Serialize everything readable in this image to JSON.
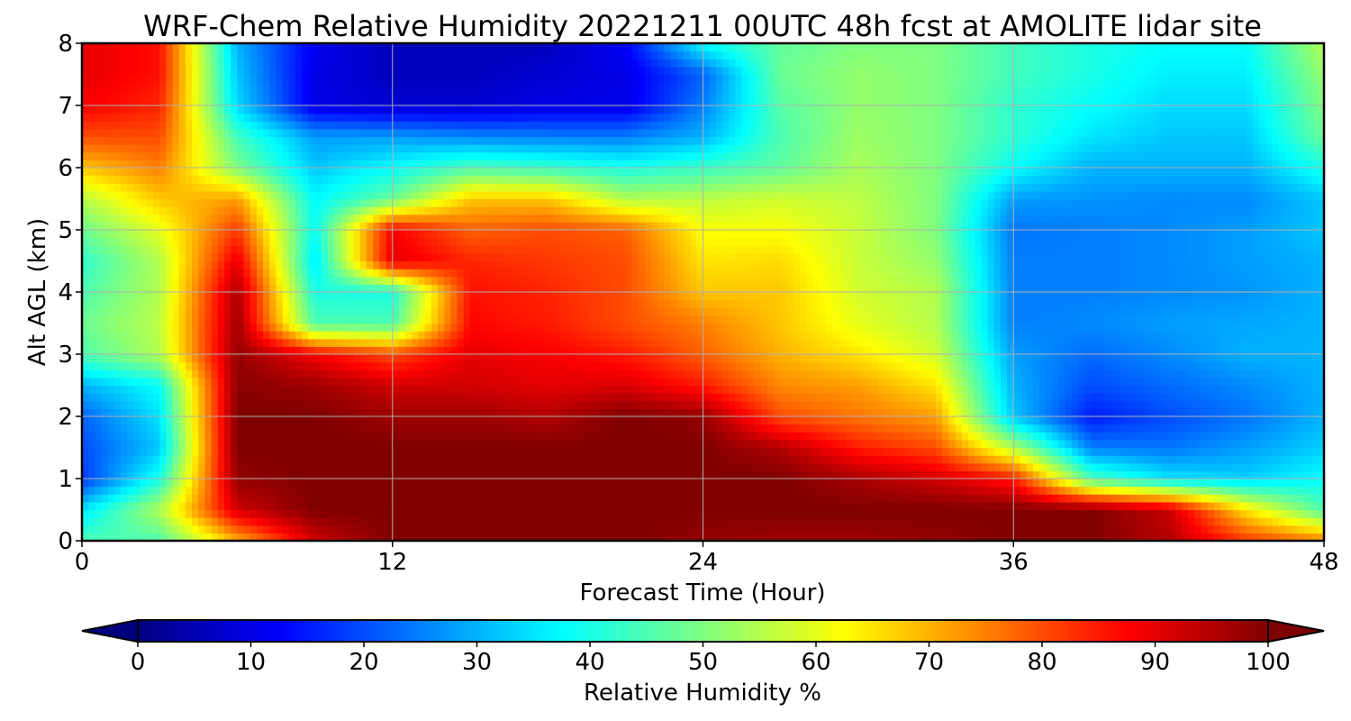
{
  "chart_data": {
    "type": "heatmap",
    "title": "WRF-Chem Relative Humidity 20221211 00UTC 48h fcst at AMOLITE lidar site",
    "xlabel": "Forecast Time (Hour)",
    "ylabel": "Alt AGL (km)",
    "xlim": [
      0,
      48
    ],
    "ylim": [
      0,
      8
    ],
    "x_ticks": [
      "0",
      "12",
      "24",
      "36",
      "48"
    ],
    "y_ticks": [
      "0",
      "1",
      "2",
      "3",
      "4",
      "5",
      "6",
      "7",
      "8"
    ],
    "grid": true,
    "colormap": "jet",
    "colorbar": {
      "label": "Relative Humidity %",
      "orientation": "horizontal",
      "location": "bottom",
      "range": [
        0,
        100
      ],
      "extend": "both",
      "ticks": [
        "0",
        "10",
        "20",
        "30",
        "40",
        "50",
        "60",
        "70",
        "80",
        "90",
        "100"
      ]
    },
    "x": [
      0,
      3,
      6,
      9,
      12,
      15,
      18,
      21,
      24,
      27,
      30,
      33,
      36,
      39,
      42,
      45,
      48
    ],
    "y": [
      0,
      0.5,
      1,
      1.5,
      2,
      2.5,
      3,
      3.5,
      4,
      4.5,
      5,
      5.5,
      6,
      6.5,
      7,
      7.5,
      8
    ],
    "z": [
      [
        45,
        45,
        70,
        92,
        100,
        100,
        100,
        100,
        98,
        97,
        97,
        98,
        100,
        100,
        95,
        82,
        75
      ],
      [
        35,
        55,
        92,
        100,
        100,
        100,
        100,
        100,
        100,
        100,
        100,
        100,
        100,
        100,
        93,
        65,
        45
      ],
      [
        18,
        40,
        98,
        100,
        100,
        100,
        100,
        100,
        100,
        100,
        96,
        92,
        85,
        45,
        35,
        33,
        38
      ],
      [
        20,
        32,
        100,
        100,
        100,
        100,
        100,
        100,
        100,
        95,
        85,
        80,
        55,
        25,
        24,
        28,
        33
      ],
      [
        22,
        35,
        100,
        100,
        97,
        97,
        95,
        100,
        98,
        80,
        76,
        72,
        32,
        15,
        20,
        24,
        30
      ],
      [
        30,
        38,
        99,
        97,
        92,
        92,
        90,
        91,
        85,
        74,
        72,
        65,
        30,
        20,
        23,
        26,
        30
      ],
      [
        45,
        55,
        98,
        88,
        80,
        90,
        88,
        85,
        78,
        70,
        65,
        58,
        28,
        23,
        26,
        30,
        30
      ],
      [
        48,
        56,
        97,
        45,
        45,
        87,
        85,
        80,
        75,
        68,
        60,
        55,
        25,
        26,
        28,
        29,
        30
      ],
      [
        45,
        55,
        96,
        40,
        40,
        86,
        84,
        80,
        68,
        68,
        58,
        55,
        25,
        25,
        26,
        27,
        30
      ],
      [
        42,
        55,
        90,
        35,
        90,
        84,
        82,
        80,
        65,
        66,
        57,
        52,
        25,
        25,
        26,
        28,
        30
      ],
      [
        48,
        60,
        82,
        38,
        88,
        78,
        80,
        78,
        62,
        62,
        57,
        50,
        24,
        25,
        26,
        28,
        32
      ],
      [
        55,
        68,
        72,
        37,
        48,
        68,
        68,
        55,
        56,
        58,
        56,
        50,
        28,
        27,
        26,
        26,
        32
      ],
      [
        68,
        75,
        50,
        32,
        38,
        45,
        43,
        40,
        43,
        47,
        54,
        50,
        38,
        30,
        30,
        30,
        40
      ],
      [
        80,
        80,
        44,
        28,
        28,
        26,
        25,
        25,
        30,
        45,
        53,
        50,
        42,
        35,
        32,
        32,
        48
      ],
      [
        88,
        84,
        34,
        10,
        8,
        8,
        10,
        10,
        25,
        46,
        52,
        50,
        42,
        38,
        34,
        34,
        50
      ],
      [
        90,
        86,
        32,
        10,
        6,
        6,
        8,
        10,
        22,
        48,
        52,
        50,
        44,
        40,
        36,
        36,
        52
      ],
      [
        90,
        86,
        30,
        11,
        6,
        6,
        6,
        12,
        38,
        47,
        50,
        50,
        44,
        40,
        38,
        38,
        55
      ]
    ]
  }
}
